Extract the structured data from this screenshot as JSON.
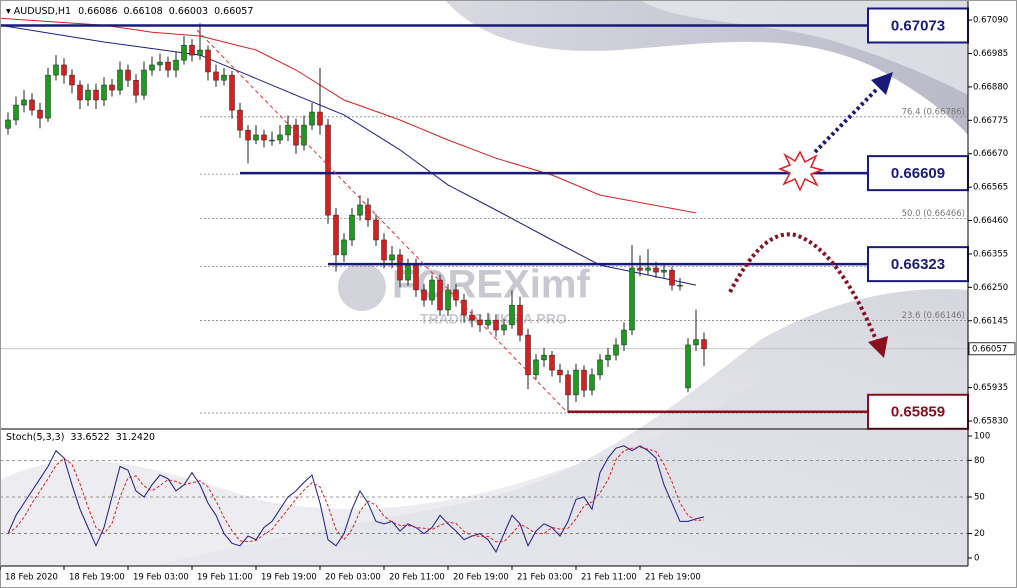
{
  "chart_data": [
    {
      "type": "candlestick",
      "symbol": "AUDUSD,H1",
      "up_color": "#1f9a1f",
      "down_color": "#d62020",
      "xlim": [
        -1,
        120
      ],
      "ylim": [
        0.65808,
        0.67128
      ],
      "yticks": [
        {
          "value": 0.6709,
          "label": "0.67090"
        },
        0.66985,
        {
          "value": 0.6688,
          "label": "0.66880"
        },
        0.66775,
        {
          "value": 0.6667,
          "label": "0.66670"
        },
        0.66565,
        {
          "value": 0.6646,
          "label": "0.66460"
        },
        0.66355,
        {
          "value": 0.6625,
          "label": "0.66250"
        },
        0.66145,
        0.65935,
        {
          "value": 0.6583,
          "label": "0.65830"
        }
      ],
      "xticks": [
        {
          "value": -1,
          "label": "18 Feb 2020"
        },
        {
          "value": 7,
          "label": "18 Feb 19:00"
        },
        {
          "value": 15,
          "label": "19 Feb 03:00"
        },
        {
          "value": 23,
          "label": "19 Feb 11:00"
        },
        {
          "value": 31,
          "label": "19 Feb 19:00"
        },
        {
          "value": 39,
          "label": "20 Feb 03:00"
        },
        {
          "value": 47,
          "label": "20 Feb 11:00"
        },
        {
          "value": 55,
          "label": "20 Feb 19:00"
        },
        {
          "value": 63,
          "label": "21 Feb 03:00"
        },
        {
          "value": 71,
          "label": "21 Feb 11:00"
        },
        {
          "value": 79,
          "label": "21 Feb 19:00"
        }
      ],
      "candles": [
        [
          0.6675,
          0.668,
          0.6673,
          0.66776
        ],
        [
          0.66776,
          0.6685,
          0.6676,
          0.66823
        ],
        [
          0.66823,
          0.6687,
          0.668,
          0.66839
        ],
        [
          0.66839,
          0.6686,
          0.6679,
          0.66807
        ],
        [
          0.66807,
          0.6683,
          0.6675,
          0.66782
        ],
        [
          0.66782,
          0.6694,
          0.6677,
          0.66917
        ],
        [
          0.66917,
          0.6698,
          0.669,
          0.66949
        ],
        [
          0.66949,
          0.6697,
          0.6689,
          0.66917
        ],
        [
          0.66917,
          0.66935,
          0.6686,
          0.66886
        ],
        [
          0.66886,
          0.669,
          0.6681,
          0.66839
        ],
        [
          0.66839,
          0.6689,
          0.6682,
          0.6687
        ],
        [
          0.6687,
          0.6689,
          0.6681,
          0.66839
        ],
        [
          0.66839,
          0.6691,
          0.6682,
          0.66886
        ],
        [
          0.66886,
          0.66905,
          0.6685,
          0.6687
        ],
        [
          0.6687,
          0.6696,
          0.66855,
          0.66933
        ],
        [
          0.66933,
          0.6695,
          0.6688,
          0.66901
        ],
        [
          0.66901,
          0.6692,
          0.6683,
          0.66854
        ],
        [
          0.66854,
          0.6696,
          0.6684,
          0.66933
        ],
        [
          0.66933,
          0.66975,
          0.66915,
          0.66949
        ],
        [
          0.66949,
          0.66985,
          0.6693,
          0.66958
        ],
        [
          0.66958,
          0.66975,
          0.6691,
          0.66933
        ],
        [
          0.66933,
          0.6699,
          0.6691,
          0.66964
        ],
        [
          0.66964,
          0.6704,
          0.6695,
          0.67011
        ],
        [
          0.67011,
          0.6703,
          0.6696,
          0.6698
        ],
        [
          0.6698,
          0.6708,
          0.66965,
          0.66996
        ],
        [
          0.66996,
          0.6701,
          0.669,
          0.66927
        ],
        [
          0.66927,
          0.6695,
          0.6688,
          0.66901
        ],
        [
          0.66901,
          0.6694,
          0.66885,
          0.66917
        ],
        [
          0.66917,
          0.6693,
          0.6678,
          0.66807
        ],
        [
          0.66807,
          0.6683,
          0.6672,
          0.66744
        ],
        [
          0.66744,
          0.6676,
          0.6664,
          0.66713
        ],
        [
          0.66713,
          0.6676,
          0.667,
          0.66729
        ],
        [
          0.66729,
          0.66745,
          0.6669,
          0.66713
        ],
        [
          0.66713,
          0.6674,
          0.66695,
          0.66713
        ],
        [
          0.66713,
          0.6676,
          0.667,
          0.66729
        ],
        [
          0.66729,
          0.6679,
          0.6671,
          0.6676
        ],
        [
          0.6676,
          0.6678,
          0.6667,
          0.66697
        ],
        [
          0.66697,
          0.6679,
          0.6668,
          0.6676
        ],
        [
          0.6676,
          0.6683,
          0.66745,
          0.66801
        ],
        [
          0.66801,
          0.6694,
          0.6673,
          0.6676
        ],
        [
          0.6676,
          0.6678,
          0.6645,
          0.66477
        ],
        [
          0.66477,
          0.665,
          0.663,
          0.66352
        ],
        [
          0.66352,
          0.6642,
          0.6633,
          0.66399
        ],
        [
          0.66399,
          0.665,
          0.6638,
          0.66477
        ],
        [
          0.66477,
          0.6654,
          0.6646,
          0.66509
        ],
        [
          0.66509,
          0.6653,
          0.6644,
          0.66462
        ],
        [
          0.66462,
          0.6648,
          0.6638,
          0.66399
        ],
        [
          0.66399,
          0.6642,
          0.6631,
          0.66336
        ],
        [
          0.66336,
          0.6638,
          0.6631,
          0.66352
        ],
        [
          0.66352,
          0.6637,
          0.6625,
          0.66273
        ],
        [
          0.66273,
          0.6634,
          0.66255,
          0.6632
        ],
        [
          0.6632,
          0.6634,
          0.6622,
          0.66242
        ],
        [
          0.66242,
          0.6626,
          0.6619,
          0.6621
        ],
        [
          0.6621,
          0.6629,
          0.66195,
          0.66273
        ],
        [
          0.66273,
          0.6629,
          0.6616,
          0.66179
        ],
        [
          0.66179,
          0.6626,
          0.6616,
          0.66242
        ],
        [
          0.66242,
          0.6626,
          0.6619,
          0.6621
        ],
        [
          0.6621,
          0.6623,
          0.6614,
          0.66163
        ],
        [
          0.66163,
          0.6618,
          0.66125,
          0.66147
        ],
        [
          0.66147,
          0.66165,
          0.6611,
          0.66132
        ],
        [
          0.66132,
          0.6617,
          0.6612,
          0.66147
        ],
        [
          0.66147,
          0.66165,
          0.66095,
          0.66116
        ],
        [
          0.66116,
          0.6615,
          0.661,
          0.66132
        ],
        [
          0.66132,
          0.6624,
          0.6612,
          0.66194
        ],
        [
          0.66194,
          0.6622,
          0.6608,
          0.661
        ],
        [
          0.661,
          0.6612,
          0.6593,
          0.65975
        ],
        [
          0.65975,
          0.6604,
          0.6596,
          0.66022
        ],
        [
          0.66022,
          0.6606,
          0.66,
          0.66037
        ],
        [
          0.66037,
          0.6605,
          0.6597,
          0.6599
        ],
        [
          0.6599,
          0.6601,
          0.6595,
          0.65975
        ],
        [
          0.65975,
          0.6599,
          0.65855,
          0.65912
        ],
        [
          0.65912,
          0.6601,
          0.6589,
          0.6599
        ],
        [
          0.6599,
          0.66005,
          0.65905,
          0.65927
        ],
        [
          0.65927,
          0.65995,
          0.6591,
          0.65975
        ],
        [
          0.65975,
          0.6604,
          0.6596,
          0.66022
        ],
        [
          0.66022,
          0.6606,
          0.66,
          0.66037
        ],
        [
          0.66037,
          0.6609,
          0.6602,
          0.66069
        ],
        [
          0.66069,
          0.6614,
          0.6605,
          0.66116
        ],
        [
          0.66116,
          0.66383,
          0.661,
          0.66311
        ],
        [
          0.66311,
          0.6635,
          0.66285,
          0.66304
        ],
        [
          0.66304,
          0.6637,
          0.6629,
          0.66311
        ],
        [
          0.66311,
          0.6633,
          0.6628,
          0.66298
        ],
        [
          0.66298,
          0.6632,
          0.6628,
          0.66304
        ],
        [
          0.66304,
          0.66315,
          0.6624,
          0.66257
        ],
        [
          0.66257,
          0.6628,
          0.6624,
          0.66257
        ],
        [
          0.65934,
          0.6609,
          0.6592,
          0.66069
        ],
        [
          0.66069,
          0.6618,
          0.6605,
          0.66086
        ],
        [
          0.66086,
          0.66108,
          0.66003,
          0.66057
        ]
      ],
      "moving_averages": [
        {
          "color": "#1c1c8c",
          "x": [
            -1,
            12,
            24,
            30,
            36,
            42,
            49,
            55,
            61,
            68,
            74,
            80,
            86
          ],
          "values": [
            0.67074,
            0.67021,
            0.6698,
            0.66917,
            0.66854,
            0.66792,
            0.66682,
            0.66572,
            0.66493,
            0.66399,
            0.6632,
            0.66289,
            0.66257
          ]
        },
        {
          "color": "#d62020",
          "x": [
            -1,
            12,
            18,
            24,
            31,
            36,
            42,
            49,
            55,
            61,
            68,
            74,
            86
          ],
          "values": [
            0.67096,
            0.67074,
            0.67052,
            0.6704,
            0.66996,
            0.66933,
            0.66839,
            0.66776,
            0.66713,
            0.66656,
            0.66603,
            0.6654,
            0.66484
          ]
        }
      ],
      "fib_start": 24,
      "fib_levels": [
        {
          "value": 0.66786,
          "label": "76.4 (0.66786)"
        },
        {
          "value": 0.66606,
          "label": null
        },
        {
          "value": 0.66466,
          "label": "50.0 (0.66466)"
        },
        {
          "value": 0.66316,
          "label": null
        },
        {
          "value": 0.66146,
          "label": "23.6 (0.66146)"
        },
        {
          "value": 0.65855,
          "label": null
        }
      ],
      "levels": [
        {
          "value": 0.67073,
          "from": -1,
          "color": "#1a1a7a"
        },
        {
          "value": 0.66609,
          "from": 29,
          "color": "#1a1a7a"
        },
        {
          "value": 0.66323,
          "from": 40,
          "color": "#1a1a7a"
        },
        {
          "value": 0.65859,
          "from": 70,
          "color": "#8a1020"
        }
      ],
      "watermark": {
        "brand": "FOREXimf",
        "tagline": "TRADING LIKE A PRO"
      }
    },
    {
      "type": "stochastic",
      "title": "Stoch(5,3,3)",
      "d_readout": {
        "value": 31.242,
        "label": "31.2420"
      },
      "xlim": [
        -1,
        120
      ],
      "ylim": [
        -6.6,
        103.3
      ],
      "yticks": [
        0,
        20,
        50,
        80,
        100
      ],
      "levels": [
        20,
        50,
        80
      ],
      "series": [
        {
          "color": "#1c1c8c",
          "dashed": false,
          "values": [
            20,
            35,
            45,
            55,
            65,
            75,
            88,
            82,
            60,
            40,
            25,
            10,
            25,
            50,
            75,
            72,
            55,
            50,
            60,
            68,
            65,
            55,
            60,
            70,
            60,
            45,
            35,
            20,
            12,
            10,
            18,
            15,
            25,
            30,
            40,
            50,
            55,
            62,
            68,
            45,
            15,
            10,
            20,
            40,
            55,
            45,
            30,
            28,
            30,
            22,
            28,
            25,
            20,
            25,
            35,
            28,
            22,
            15,
            18,
            20,
            15,
            5,
            20,
            35,
            28,
            10,
            22,
            28,
            25,
            18,
            30,
            48,
            50,
            40,
            70,
            82,
            90,
            92,
            88,
            92,
            88,
            82,
            60,
            45,
            30,
            30,
            32,
            33.6522
          ]
        },
        {
          "color": "#d62020",
          "dashed": true,
          "values": [
            20,
            25,
            33.3,
            45,
            55,
            65,
            76,
            81.7,
            76.7,
            60.7,
            41.7,
            25,
            20,
            28.3,
            50,
            65.7,
            67.3,
            59,
            55,
            59.3,
            64.3,
            62.7,
            60,
            61.7,
            63.3,
            58.3,
            46.7,
            33.3,
            22.3,
            14,
            13.3,
            14.3,
            19.3,
            23.3,
            31.7,
            40,
            48.3,
            55.7,
            61.7,
            58.3,
            42.7,
            23.3,
            15,
            23.3,
            38.3,
            46.7,
            43.3,
            34.3,
            29.3,
            26.7,
            26.7,
            25,
            24.3,
            23.3,
            26.7,
            29.3,
            28.3,
            21.7,
            18.3,
            17.7,
            17.7,
            13.3,
            13.3,
            20,
            27.7,
            24.3,
            20,
            20,
            25,
            23.7,
            24.3,
            32,
            42.7,
            46,
            53.3,
            64,
            80.7,
            88,
            90,
            90.7,
            89.3,
            87.3,
            76.7,
            62.3,
            45,
            35,
            30.7,
            31.242
          ]
        }
      ]
    }
  ]
}
